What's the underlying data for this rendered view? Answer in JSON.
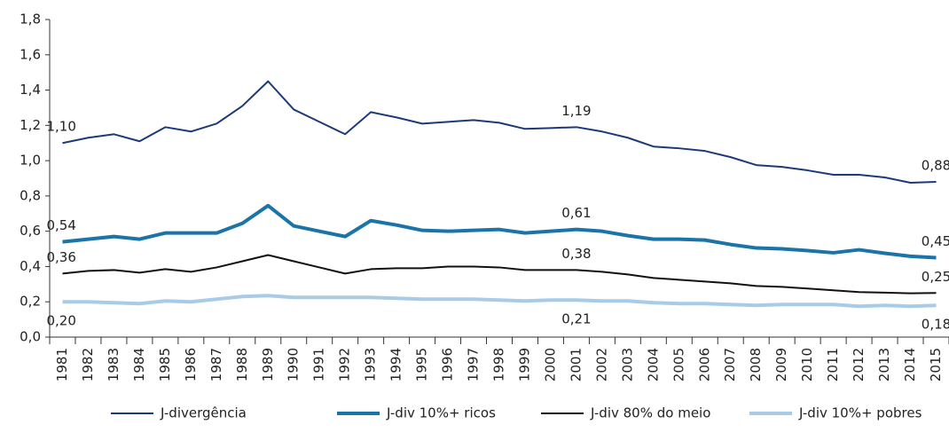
{
  "chart_data": {
    "type": "line",
    "categories": [
      "1981",
      "1982",
      "1983",
      "1984",
      "1985",
      "1986",
      "1987",
      "1988",
      "1989",
      "1990",
      "1991",
      "1992",
      "1993",
      "1994",
      "1995",
      "1996",
      "1997",
      "1998",
      "1999",
      "2000",
      "2001",
      "2002",
      "2003",
      "2004",
      "2005",
      "2006",
      "2007",
      "2008",
      "2009",
      "2010",
      "2011",
      "2012",
      "2013",
      "2014",
      "2015"
    ],
    "ylim": [
      0,
      1.8
    ],
    "yticks": [
      {
        "value": 0,
        "label": "0,0"
      },
      {
        "value": 0.2,
        "label": "0,2"
      },
      {
        "value": 0.4,
        "label": "0,4"
      },
      {
        "value": 0.6,
        "label": "0,6"
      },
      {
        "value": 0.8,
        "label": "0,8"
      },
      {
        "value": 1.0,
        "label": "1,0"
      },
      {
        "value": 1.2,
        "label": "1,2"
      },
      {
        "value": 1.4,
        "label": "1,4"
      },
      {
        "value": 1.6,
        "label": "1,6"
      },
      {
        "value": 1.8,
        "label": "1,8"
      }
    ],
    "grid": false,
    "series": [
      {
        "name": "J-divergência",
        "color": "#1c3a78",
        "width": 2,
        "values": [
          1.1,
          1.13,
          1.15,
          1.11,
          1.19,
          1.165,
          1.21,
          1.31,
          1.45,
          1.29,
          1.22,
          1.15,
          1.275,
          1.245,
          1.21,
          1.22,
          1.23,
          1.215,
          1.18,
          1.185,
          1.19,
          1.165,
          1.13,
          1.08,
          1.07,
          1.055,
          1.02,
          0.975,
          0.965,
          0.945,
          0.92,
          0.92,
          0.905,
          0.875,
          0.88
        ],
        "value_labels": [
          "1,10",
          null,
          null,
          null,
          null,
          null,
          null,
          null,
          null,
          null,
          null,
          null,
          null,
          null,
          null,
          null,
          null,
          null,
          null,
          null,
          "1,19",
          null,
          null,
          null,
          null,
          null,
          null,
          null,
          null,
          null,
          null,
          null,
          null,
          null,
          "0,88"
        ]
      },
      {
        "name": "J-div 10%+ ricos",
        "color": "#1a74a8",
        "width": 4,
        "values": [
          0.54,
          0.555,
          0.57,
          0.555,
          0.59,
          0.59,
          0.59,
          0.645,
          0.745,
          0.63,
          0.6,
          0.57,
          0.66,
          0.635,
          0.605,
          0.6,
          0.605,
          0.61,
          0.59,
          0.6,
          0.61,
          0.6,
          0.575,
          0.555,
          0.555,
          0.55,
          0.525,
          0.505,
          0.5,
          0.49,
          0.478,
          0.495,
          0.475,
          0.458,
          0.45
        ],
        "value_labels": [
          "0,54",
          null,
          null,
          null,
          null,
          null,
          null,
          null,
          null,
          null,
          null,
          null,
          null,
          null,
          null,
          null,
          null,
          null,
          null,
          null,
          "0,61",
          null,
          null,
          null,
          null,
          null,
          null,
          null,
          null,
          null,
          null,
          null,
          null,
          null,
          "0,45"
        ]
      },
      {
        "name": "J-div 80% do meio",
        "color": "#111111",
        "width": 2,
        "values": [
          0.36,
          0.375,
          0.38,
          0.365,
          0.385,
          0.37,
          0.395,
          0.43,
          0.465,
          0.43,
          0.395,
          0.36,
          0.385,
          0.39,
          0.39,
          0.4,
          0.4,
          0.395,
          0.38,
          0.38,
          0.38,
          0.37,
          0.355,
          0.335,
          0.325,
          0.315,
          0.305,
          0.29,
          0.285,
          0.275,
          0.265,
          0.255,
          0.252,
          0.248,
          0.25
        ],
        "value_labels": [
          "0,36",
          null,
          null,
          null,
          null,
          null,
          null,
          null,
          null,
          null,
          null,
          null,
          null,
          null,
          null,
          null,
          null,
          null,
          null,
          null,
          "0,38",
          null,
          null,
          null,
          null,
          null,
          null,
          null,
          null,
          null,
          null,
          null,
          null,
          null,
          "0,25"
        ]
      },
      {
        "name": "J-div 10%+ pobres",
        "color": "#a8cbe8",
        "width": 4,
        "values": [
          0.2,
          0.2,
          0.195,
          0.19,
          0.205,
          0.2,
          0.215,
          0.23,
          0.235,
          0.225,
          0.225,
          0.225,
          0.225,
          0.22,
          0.215,
          0.215,
          0.215,
          0.21,
          0.205,
          0.21,
          0.21,
          0.205,
          0.205,
          0.195,
          0.19,
          0.19,
          0.185,
          0.18,
          0.185,
          0.185,
          0.185,
          0.175,
          0.18,
          0.175,
          0.18
        ],
        "value_labels": [
          "0,20",
          null,
          null,
          null,
          null,
          null,
          null,
          null,
          null,
          null,
          null,
          null,
          null,
          null,
          null,
          null,
          null,
          null,
          null,
          null,
          "0,21",
          null,
          null,
          null,
          null,
          null,
          null,
          null,
          null,
          null,
          null,
          null,
          null,
          null,
          "0,18"
        ]
      }
    ]
  }
}
